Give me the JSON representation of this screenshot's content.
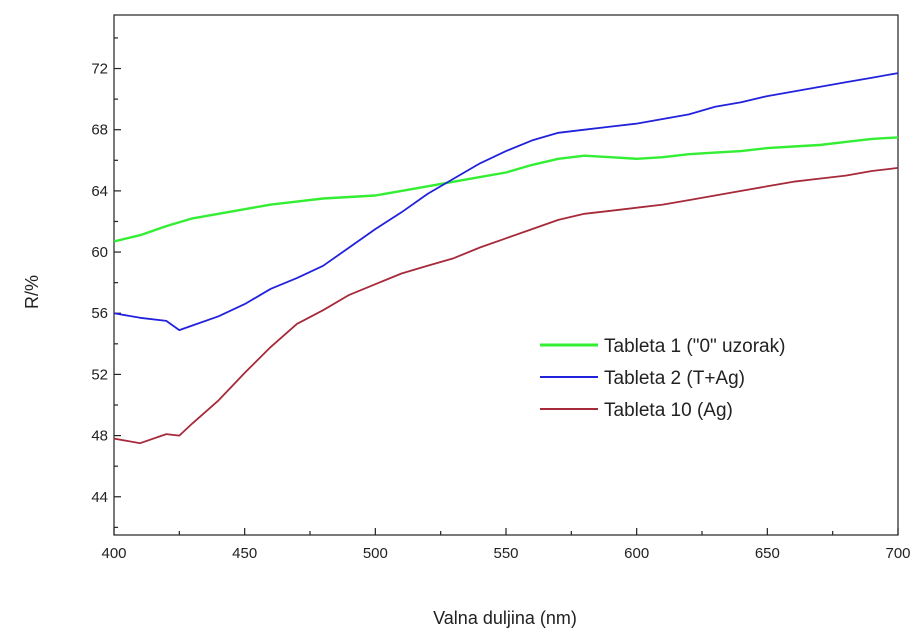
{
  "chart_data": {
    "type": "line",
    "xlabel": "Valna duljina (nm)",
    "ylabel": "R/%",
    "xlim": [
      400,
      700
    ],
    "ylim": [
      41.5,
      75.5
    ],
    "xticks": [
      400,
      450,
      500,
      550,
      600,
      650,
      700
    ],
    "yticks": [
      44,
      48,
      52,
      56,
      60,
      64,
      68,
      72
    ],
    "xtick_labels": [
      "400",
      "450",
      "500",
      "550",
      "600",
      "650",
      "700"
    ],
    "ytick_labels": [
      "44",
      "48",
      "52",
      "56",
      "60",
      "64",
      "68",
      "72"
    ],
    "legend_position": "center-right",
    "grid": false,
    "series": [
      {
        "name": "Tableta 1 (\"0\" uzorak)",
        "color": "#33ee33",
        "points": [
          [
            400,
            60.7
          ],
          [
            410,
            61.1
          ],
          [
            420,
            61.7
          ],
          [
            430,
            62.2
          ],
          [
            440,
            62.5
          ],
          [
            450,
            62.8
          ],
          [
            460,
            63.1
          ],
          [
            470,
            63.3
          ],
          [
            480,
            63.5
          ],
          [
            490,
            63.6
          ],
          [
            500,
            63.7
          ],
          [
            510,
            64.0
          ],
          [
            520,
            64.3
          ],
          [
            530,
            64.6
          ],
          [
            540,
            64.9
          ],
          [
            550,
            65.2
          ],
          [
            560,
            65.7
          ],
          [
            570,
            66.1
          ],
          [
            580,
            66.3
          ],
          [
            590,
            66.2
          ],
          [
            600,
            66.1
          ],
          [
            610,
            66.2
          ],
          [
            620,
            66.4
          ],
          [
            630,
            66.5
          ],
          [
            640,
            66.6
          ],
          [
            650,
            66.8
          ],
          [
            660,
            66.9
          ],
          [
            670,
            67.0
          ],
          [
            680,
            67.2
          ],
          [
            690,
            67.4
          ],
          [
            700,
            67.5
          ]
        ]
      },
      {
        "name": "Tableta 2 (T+Ag)",
        "color": "#2222dd",
        "points": [
          [
            400,
            56.0
          ],
          [
            410,
            55.7
          ],
          [
            420,
            55.5
          ],
          [
            425,
            54.9
          ],
          [
            430,
            55.2
          ],
          [
            440,
            55.8
          ],
          [
            450,
            56.6
          ],
          [
            460,
            57.6
          ],
          [
            470,
            58.3
          ],
          [
            480,
            59.1
          ],
          [
            490,
            60.3
          ],
          [
            500,
            61.5
          ],
          [
            510,
            62.6
          ],
          [
            520,
            63.8
          ],
          [
            530,
            64.8
          ],
          [
            540,
            65.8
          ],
          [
            550,
            66.6
          ],
          [
            560,
            67.3
          ],
          [
            570,
            67.8
          ],
          [
            580,
            68.0
          ],
          [
            590,
            68.2
          ],
          [
            600,
            68.4
          ],
          [
            610,
            68.7
          ],
          [
            620,
            69.0
          ],
          [
            630,
            69.5
          ],
          [
            640,
            69.8
          ],
          [
            650,
            70.2
          ],
          [
            660,
            70.5
          ],
          [
            670,
            70.8
          ],
          [
            680,
            71.1
          ],
          [
            690,
            71.4
          ],
          [
            700,
            71.7
          ]
        ]
      },
      {
        "name": "Tableta 10 (Ag)",
        "color": "#a62a3a",
        "points": [
          [
            400,
            47.8
          ],
          [
            410,
            47.5
          ],
          [
            420,
            48.1
          ],
          [
            425,
            48.0
          ],
          [
            430,
            48.8
          ],
          [
            440,
            50.3
          ],
          [
            450,
            52.1
          ],
          [
            460,
            53.8
          ],
          [
            470,
            55.3
          ],
          [
            480,
            56.2
          ],
          [
            490,
            57.2
          ],
          [
            500,
            57.9
          ],
          [
            510,
            58.6
          ],
          [
            520,
            59.1
          ],
          [
            530,
            59.6
          ],
          [
            540,
            60.3
          ],
          [
            550,
            60.9
          ],
          [
            560,
            61.5
          ],
          [
            570,
            62.1
          ],
          [
            580,
            62.5
          ],
          [
            590,
            62.7
          ],
          [
            600,
            62.9
          ],
          [
            610,
            63.1
          ],
          [
            620,
            63.4
          ],
          [
            630,
            63.7
          ],
          [
            640,
            64.0
          ],
          [
            650,
            64.3
          ],
          [
            660,
            64.6
          ],
          [
            670,
            64.8
          ],
          [
            680,
            65.0
          ],
          [
            690,
            65.3
          ],
          [
            700,
            65.5
          ]
        ]
      }
    ]
  }
}
